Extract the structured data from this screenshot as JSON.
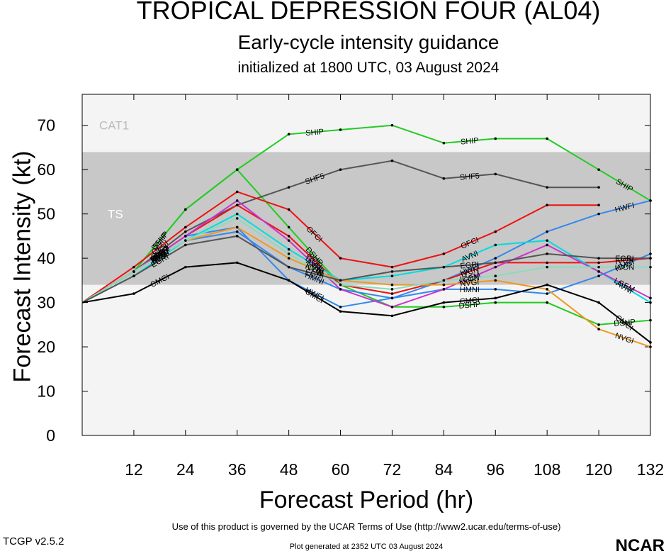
{
  "header": {
    "title": "TROPICAL DEPRESSION FOUR (AL04)",
    "subtitle": "Early-cycle intensity guidance",
    "init": "initialized at 1800 UTC, 03 August 2024"
  },
  "footer": {
    "terms": "Use of this product is governed by the UCAR Terms of Use (http://www2.ucar.edu/terms-of-use)",
    "version": "TCGP v2.5.2",
    "generated": "Plot generated at 2352 UTC   03 August 2024",
    "logo": "NCAR"
  },
  "chart_data": {
    "type": "line",
    "title": "TROPICAL DEPRESSION FOUR (AL04)",
    "xlabel": "Forecast Period (hr)",
    "ylabel": "Forecast Intensity (kt)",
    "xlim": [
      0,
      132
    ],
    "ylim": [
      0,
      77
    ],
    "xticks": [
      12,
      24,
      36,
      48,
      60,
      72,
      84,
      96,
      108,
      120,
      132
    ],
    "yticks": [
      0,
      10,
      20,
      30,
      40,
      50,
      60,
      70
    ],
    "bands": [
      {
        "label": "TS",
        "from": 34,
        "to": 64,
        "color": "#c8c8c8"
      },
      {
        "label": "CAT1",
        "from": 64,
        "to": 77,
        "color": "#f4f4f4"
      }
    ],
    "below_band_color": "#f4f4f4",
    "grid": false,
    "series": [
      {
        "name": "SHIP",
        "color": "#22cc22",
        "x": [
          0,
          12,
          24,
          36,
          48,
          60,
          72,
          84,
          96,
          108,
          120,
          132
        ],
        "y": [
          30,
          37,
          51,
          60,
          68,
          69,
          70,
          66,
          67,
          67,
          60,
          53
        ]
      },
      {
        "name": "DSHP",
        "color": "#22cc22",
        "x": [
          0,
          12,
          24,
          36,
          48,
          60,
          72,
          84,
          96,
          108,
          120,
          132
        ],
        "y": [
          30,
          37,
          51,
          60,
          47,
          34,
          29,
          29,
          30,
          30,
          25,
          26
        ]
      },
      {
        "name": "SHF5",
        "color": "#555555",
        "x": [
          0,
          12,
          24,
          36,
          48,
          60,
          72,
          84,
          96,
          108,
          120
        ],
        "y": [
          30,
          37,
          46,
          52,
          56,
          60,
          62,
          58,
          59,
          56,
          56
        ]
      },
      {
        "name": "OFCI",
        "color": "#ee1111",
        "x": [
          0,
          12,
          24,
          36,
          48,
          60,
          72,
          84,
          96,
          108,
          120
        ],
        "y": [
          30,
          38,
          47,
          55,
          51,
          40,
          38,
          41,
          46,
          52,
          52
        ]
      },
      {
        "name": "HWFI",
        "color": "#3388ee",
        "x": [
          0,
          12,
          24,
          36,
          48,
          60,
          72,
          84,
          96,
          108,
          120,
          132
        ],
        "y": [
          30,
          37,
          45,
          47,
          35,
          29,
          31,
          35,
          40,
          46,
          50,
          53
        ]
      },
      {
        "name": "HMNI",
        "color": "#3388ee",
        "x": [
          0,
          12,
          24,
          36,
          48,
          60,
          72,
          84,
          96,
          108,
          120,
          132
        ],
        "y": [
          30,
          37,
          44,
          46,
          38,
          33,
          31,
          33,
          33,
          32,
          36,
          41
        ]
      },
      {
        "name": "IVCN",
        "color": "#ee1111",
        "x": [
          0,
          12,
          24,
          36,
          48,
          60,
          72,
          84,
          96,
          108,
          120,
          132
        ],
        "y": [
          30,
          37,
          45,
          52,
          45,
          34,
          32,
          35,
          39,
          39,
          39,
          40
        ]
      },
      {
        "name": "AVNI",
        "color": "#00dddd",
        "x": [
          0,
          12,
          24,
          36,
          48,
          60,
          72,
          84,
          96,
          108,
          120,
          132
        ],
        "y": [
          30,
          36,
          44,
          50,
          42,
          35,
          36,
          38,
          43,
          44,
          37,
          30
        ]
      },
      {
        "name": "LGEM",
        "color": "#cc33cc",
        "x": [
          0,
          12,
          24,
          36,
          48,
          60,
          72,
          84,
          96,
          108,
          120,
          132
        ],
        "y": [
          30,
          37,
          45,
          53,
          44,
          33,
          29,
          33,
          38,
          43,
          37,
          31
        ]
      },
      {
        "name": "NVGI",
        "color": "#ee9922",
        "x": [
          0,
          12,
          24,
          36,
          48,
          60,
          72,
          84,
          96,
          108,
          120,
          132
        ],
        "y": [
          30,
          37,
          44,
          47,
          40,
          35,
          34,
          34,
          35,
          33,
          24,
          20
        ]
      },
      {
        "name": "ICON",
        "color": "#88ddbb",
        "x": [
          0,
          12,
          24,
          36,
          48,
          60,
          72,
          84,
          96,
          108,
          120,
          132
        ],
        "y": [
          30,
          37,
          44,
          49,
          41,
          34,
          33,
          35,
          36,
          38,
          38,
          38
        ]
      },
      {
        "name": "EGRI",
        "color": "#555555",
        "x": [
          0,
          12,
          24,
          36,
          48,
          60,
          72,
          84,
          96,
          108,
          120,
          132
        ],
        "y": [
          30,
          36,
          43,
          45,
          38,
          35,
          37,
          38,
          39,
          41,
          40,
          40
        ]
      },
      {
        "name": "CMCI",
        "color": "#000000",
        "x": [
          0,
          12,
          24,
          36,
          48,
          60,
          72,
          84,
          96,
          108,
          120,
          132
        ],
        "y": [
          30,
          32,
          38,
          39,
          35,
          28,
          27,
          30,
          31,
          34,
          30,
          21
        ]
      }
    ]
  }
}
